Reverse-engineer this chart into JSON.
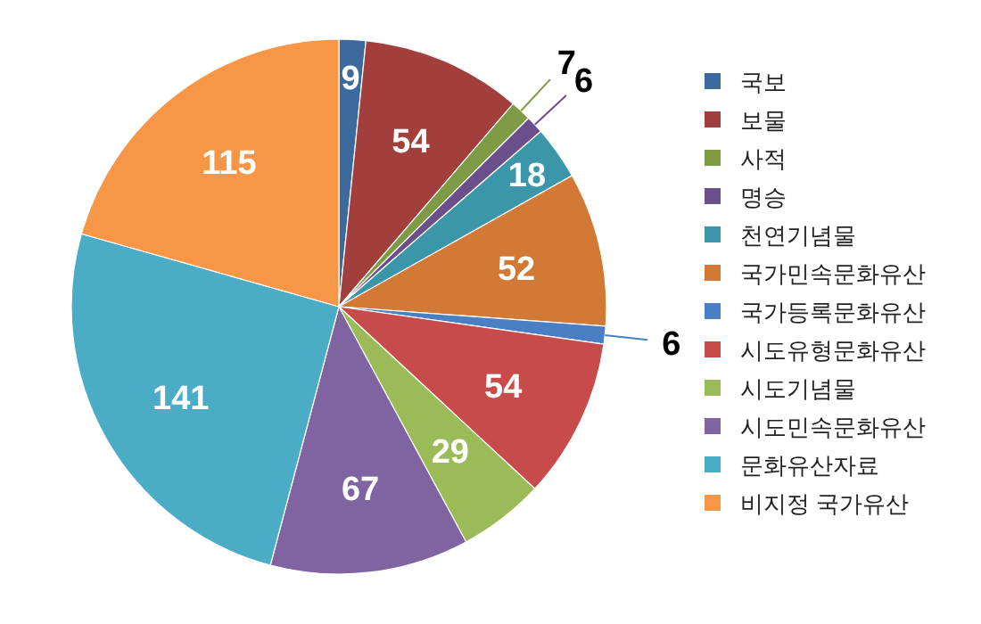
{
  "chart_data": {
    "type": "pie",
    "data_labels": true,
    "legend": "right",
    "categories": [
      "국보",
      "보물",
      "사적",
      "명승",
      "천연기념물",
      "국가민속문화유산",
      "국가등록문화유산",
      "시도유형문화유산",
      "시도기념물",
      "시도민속문화유산",
      "문화유산자료",
      "비지정 국가유산"
    ],
    "values": [
      9,
      54,
      7,
      6,
      18,
      52,
      6,
      54,
      29,
      67,
      141,
      115
    ],
    "colors": [
      "#3d6a9c",
      "#a23f3d",
      "#7e9a45",
      "#6b4f8c",
      "#3a96a8",
      "#d27a35",
      "#4a7fc4",
      "#c84b4b",
      "#9bbb59",
      "#8064a2",
      "#4bacc6",
      "#f79646"
    ]
  }
}
